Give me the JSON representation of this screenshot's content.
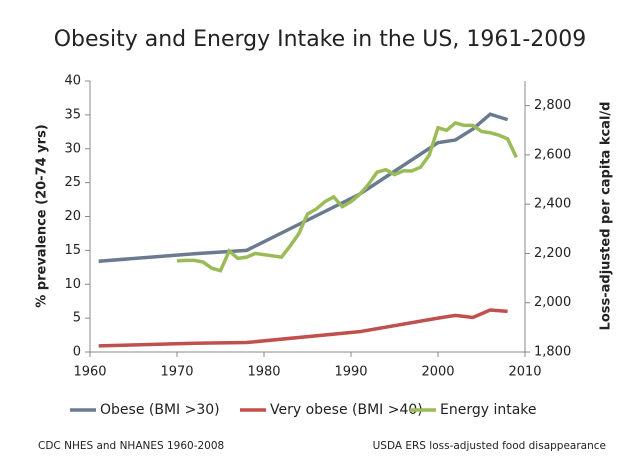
{
  "chart_data": {
    "type": "line",
    "title": "Obesity and Energy Intake in the US, 1961-2009",
    "y_label": "% prevalence (20-74 yrs)",
    "y2_label": "Loss-adjusted per capita kcal/d",
    "xlim": [
      1960,
      2010
    ],
    "xticks": [
      1960,
      1970,
      1980,
      1990,
      2000,
      2010
    ],
    "ylim": [
      0,
      40
    ],
    "yticks": [
      0,
      5,
      10,
      15,
      20,
      25,
      30,
      35,
      40
    ],
    "y2lim": [
      1800,
      2900
    ],
    "y2ticks": [
      {
        "value": 1800,
        "label": "1,800"
      },
      {
        "value": 2000,
        "label": "2,000"
      },
      {
        "value": 2200,
        "label": "2,200"
      },
      {
        "value": 2400,
        "label": "2,400"
      },
      {
        "value": 2600,
        "label": "2,600"
      },
      {
        "value": 2800,
        "label": "2,800"
      }
    ],
    "grid": false,
    "series": [
      {
        "name": "Obese (BMI >30)",
        "color": "#6b7b8f",
        "axis": "y",
        "x": [
          1961,
          1972,
          1978,
          1991,
          2000,
          2002,
          2004,
          2006,
          2008
        ],
        "values": [
          13.4,
          14.5,
          15.0,
          23.3,
          30.9,
          31.3,
          32.9,
          35.1,
          34.3
        ]
      },
      {
        "name": "Very obese (BMI >40)",
        "color": "#c0504d",
        "axis": "y",
        "x": [
          1961,
          1972,
          1978,
          1991,
          2000,
          2002,
          2004,
          2006,
          2008
        ],
        "values": [
          0.9,
          1.3,
          1.4,
          3.0,
          5.0,
          5.4,
          5.1,
          6.2,
          6.0
        ]
      },
      {
        "name": "Energy intake",
        "color": "#9bbb59",
        "axis": "y2",
        "x": [
          1970,
          1971,
          1972,
          1973,
          1974,
          1975,
          1976,
          1977,
          1978,
          1979,
          1980,
          1981,
          1982,
          1983,
          1984,
          1985,
          1986,
          1987,
          1988,
          1989,
          1990,
          1991,
          1992,
          1993,
          1994,
          1995,
          1996,
          1997,
          1998,
          1999,
          2000,
          2001,
          2002,
          2003,
          2004,
          2005,
          2006,
          2007,
          2008,
          2009
        ],
        "values": [
          2170,
          2172,
          2172,
          2165,
          2140,
          2130,
          2210,
          2180,
          2185,
          2200,
          2195,
          2190,
          2185,
          2230,
          2280,
          2360,
          2380,
          2410,
          2430,
          2390,
          2410,
          2440,
          2480,
          2530,
          2540,
          2520,
          2535,
          2535,
          2550,
          2600,
          2710,
          2700,
          2730,
          2720,
          2720,
          2695,
          2690,
          2680,
          2665,
          2590
        ]
      }
    ],
    "notes": [
      "CDC NHES and NHANES 1960-2008",
      "USDA ERS loss-adjusted  food disappearance"
    ]
  }
}
